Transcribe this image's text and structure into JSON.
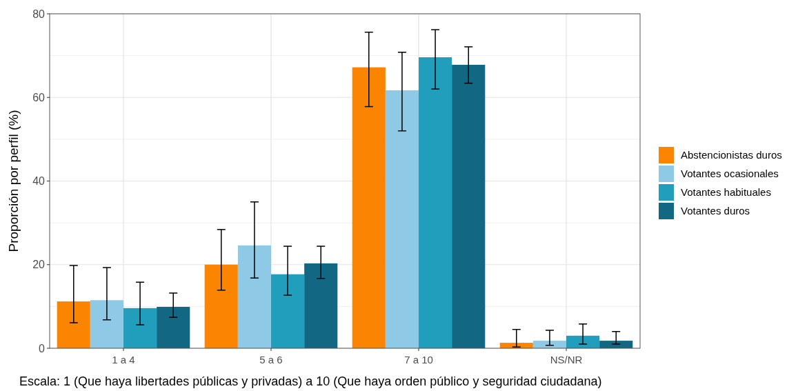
{
  "chart_data": {
    "type": "bar",
    "categories": [
      "1 a 4",
      "5 a 6",
      "7 a 10",
      "NS/NR"
    ],
    "series": [
      {
        "name": "Abstencionistas duros",
        "color": "#fb8500",
        "values": [
          11.2,
          20.0,
          67.2,
          1.3
        ],
        "errors": [
          [
            6.1,
            19.8
          ],
          [
            13.9,
            28.4
          ],
          [
            57.8,
            75.6
          ],
          [
            0.3,
            4.5
          ]
        ]
      },
      {
        "name": "Votantes ocasionales",
        "color": "#8ecae6",
        "values": [
          11.5,
          24.6,
          61.7,
          1.8
        ],
        "errors": [
          [
            6.8,
            19.3
          ],
          [
            16.8,
            35.0
          ],
          [
            52.0,
            70.8
          ],
          [
            0.7,
            4.3
          ]
        ]
      },
      {
        "name": "Votantes habituales",
        "color": "#219ebc",
        "values": [
          9.6,
          17.7,
          69.6,
          3.0
        ],
        "errors": [
          [
            5.6,
            15.8
          ],
          [
            12.7,
            24.4
          ],
          [
            62.0,
            76.2
          ],
          [
            1.0,
            5.8
          ]
        ]
      },
      {
        "name": "Votantes duros",
        "color": "#126782",
        "values": [
          9.9,
          20.3,
          67.8,
          1.8
        ],
        "errors": [
          [
            7.4,
            13.2
          ],
          [
            16.7,
            24.4
          ],
          [
            63.4,
            72.1
          ],
          [
            1.0,
            4.0
          ]
        ]
      }
    ],
    "ylabel": "Proporción por perfil (%)",
    "ylim": [
      0,
      80
    ],
    "yticks": [
      0,
      20,
      40,
      60,
      80
    ],
    "grid": true,
    "legend": "right",
    "annotations": [
      "Escala: 1 (Que haya libertades públicas y privadas) a 10 (Que haya orden público y seguridad ciudadana)"
    ]
  }
}
